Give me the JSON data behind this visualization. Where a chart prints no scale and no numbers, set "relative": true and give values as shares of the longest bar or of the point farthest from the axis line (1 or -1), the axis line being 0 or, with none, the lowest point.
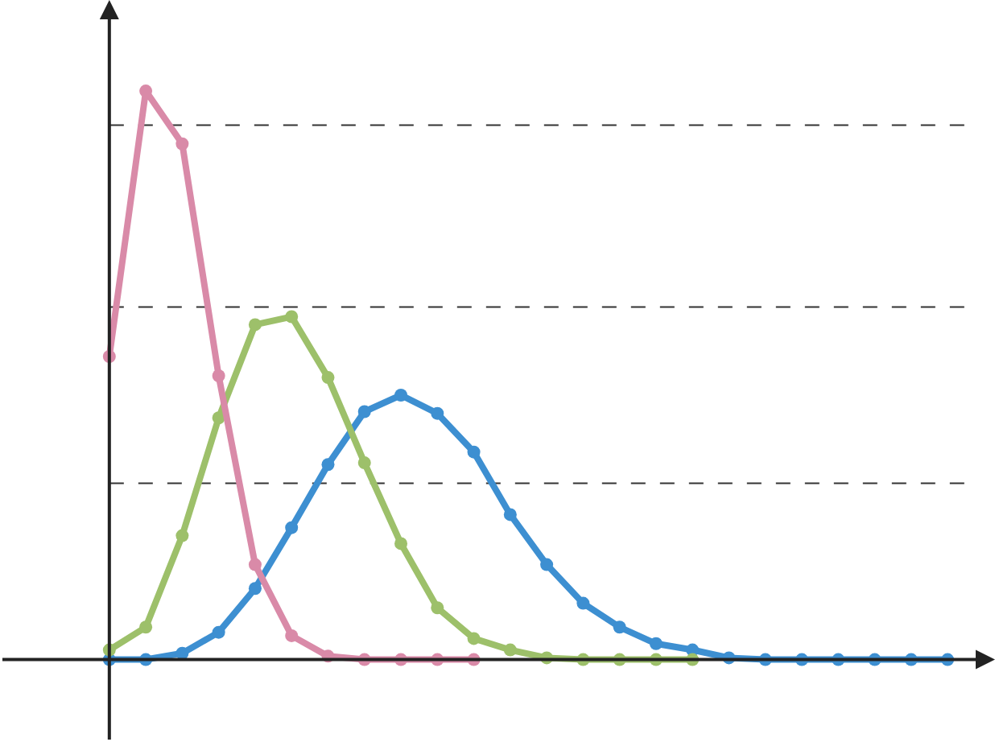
{
  "chart_data": {
    "type": "line",
    "relative": true,
    "marker": "circle",
    "line_style": "solid",
    "categories": [
      null,
      null,
      null,
      null,
      null,
      null,
      null,
      null,
      null,
      null,
      null,
      null,
      null,
      null,
      null,
      null,
      null,
      null,
      null,
      null,
      null,
      null,
      null,
      null
    ],
    "series": [
      {
        "color": "#3d8fd1",
        "values": [
          0,
          0,
          0.011,
          0.048,
          0.125,
          0.232,
          0.343,
          0.436,
          0.465,
          0.433,
          0.365,
          0.255,
          0.167,
          0.099,
          0.057,
          0.028,
          0.017,
          0.003,
          0,
          0,
          0,
          0,
          0,
          0
        ]
      },
      {
        "color": "#9dc06a",
        "values": [
          0.017,
          0.057,
          0.218,
          0.425,
          0.589,
          0.603,
          0.496,
          0.346,
          0.204,
          0.091,
          0.037,
          0.017,
          0.003,
          0,
          0,
          0,
          0,
          null,
          null,
          null,
          null,
          null,
          null,
          null
        ]
      },
      {
        "color": "#d98aa8",
        "values": [
          0.533,
          1,
          0.907,
          0.499,
          0.167,
          0.042,
          0.006,
          0,
          0,
          0,
          0,
          null,
          null,
          null,
          null,
          null,
          null,
          null,
          null,
          null,
          null,
          null,
          null,
          null
        ]
      }
    ],
    "ref_lines": [
      {
        "axis": "y",
        "value": 0.31,
        "color": "#333333",
        "line_style": "dashed"
      },
      {
        "axis": "y",
        "value": 0.62,
        "color": "#333333",
        "line_style": "dashed"
      },
      {
        "axis": "y",
        "value": 0.94,
        "color": "#333333",
        "line_style": "dashed"
      }
    ]
  }
}
